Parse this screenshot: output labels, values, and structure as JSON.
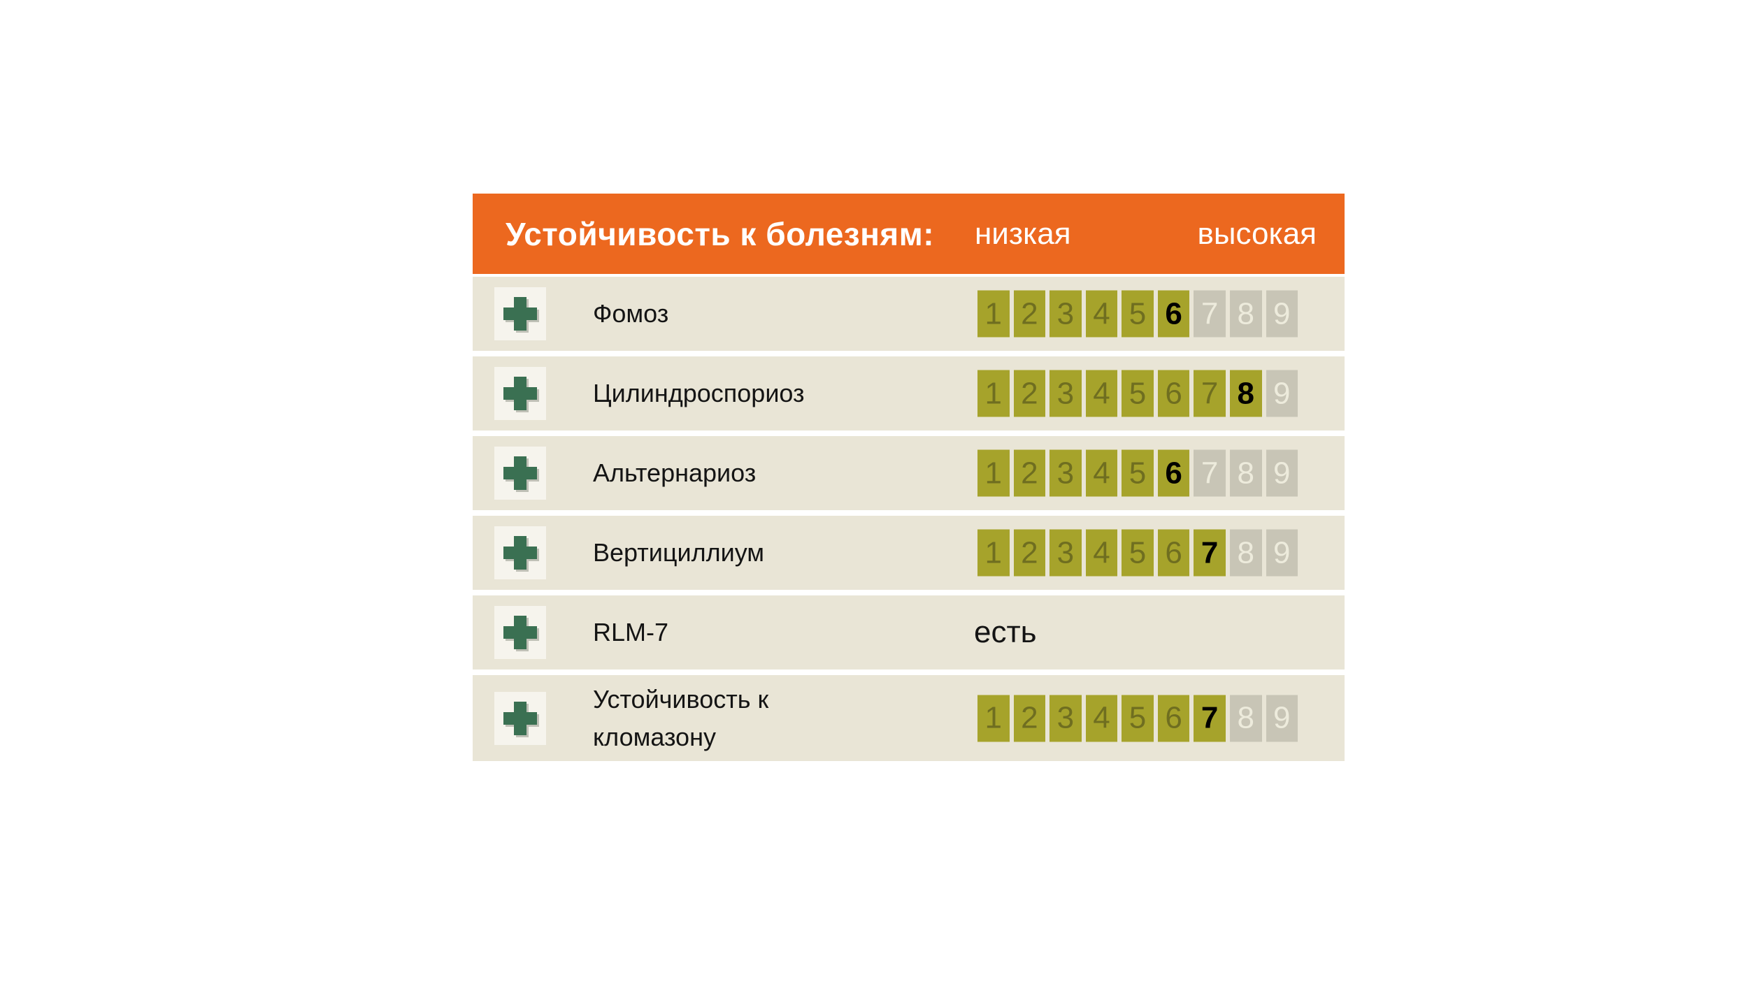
{
  "header": {
    "title": "Устойчивость к болезням:",
    "scale_low_label": "низкая",
    "scale_high_label": "высокая"
  },
  "scale": {
    "min": 1,
    "max": 9
  },
  "rows": [
    {
      "label": "Фомоз",
      "type": "scale",
      "value": 6
    },
    {
      "label": "Цилиндроспориоз",
      "type": "scale",
      "value": 8
    },
    {
      "label": "Альтернариоз",
      "type": "scale",
      "value": 6
    },
    {
      "label": "Вертициллиум",
      "type": "scale",
      "value": 7
    },
    {
      "label": "RLM-7",
      "type": "text",
      "value_text": "есть"
    },
    {
      "label": "Устойчивость к кломазону",
      "type": "scale",
      "value": 7,
      "tall": true
    }
  ],
  "icons": {
    "plus_icon": "plus-cross"
  },
  "colors": {
    "header_orange": "#ec681f",
    "row_beige": "#e9e5d6",
    "scale_olive": "#a6a32b",
    "scale_gray": "#c8c5b6",
    "faded_digit_olive": "#6f6e20",
    "faded_digit_gray": "#edebdc",
    "value_digit": "#000000",
    "plus_green": "#3a7052",
    "plus_box_bg": "#f6f4ed",
    "header_text": "#ffffff",
    "label_text": "#141414"
  },
  "chart_data": {
    "type": "table",
    "title": "Устойчивость к болезням:",
    "scale_labels": [
      "низкая",
      "высокая"
    ],
    "scale_range": [
      1,
      9
    ],
    "categories": [
      "Фомоз",
      "Цилиндроспориоз",
      "Альтернариоз",
      "Вертициллиум",
      "RLM-7",
      "Устойчивость к кломазону"
    ],
    "values": [
      6,
      8,
      6,
      7,
      "есть",
      7
    ],
    "legend_position": "header",
    "grid": false
  }
}
